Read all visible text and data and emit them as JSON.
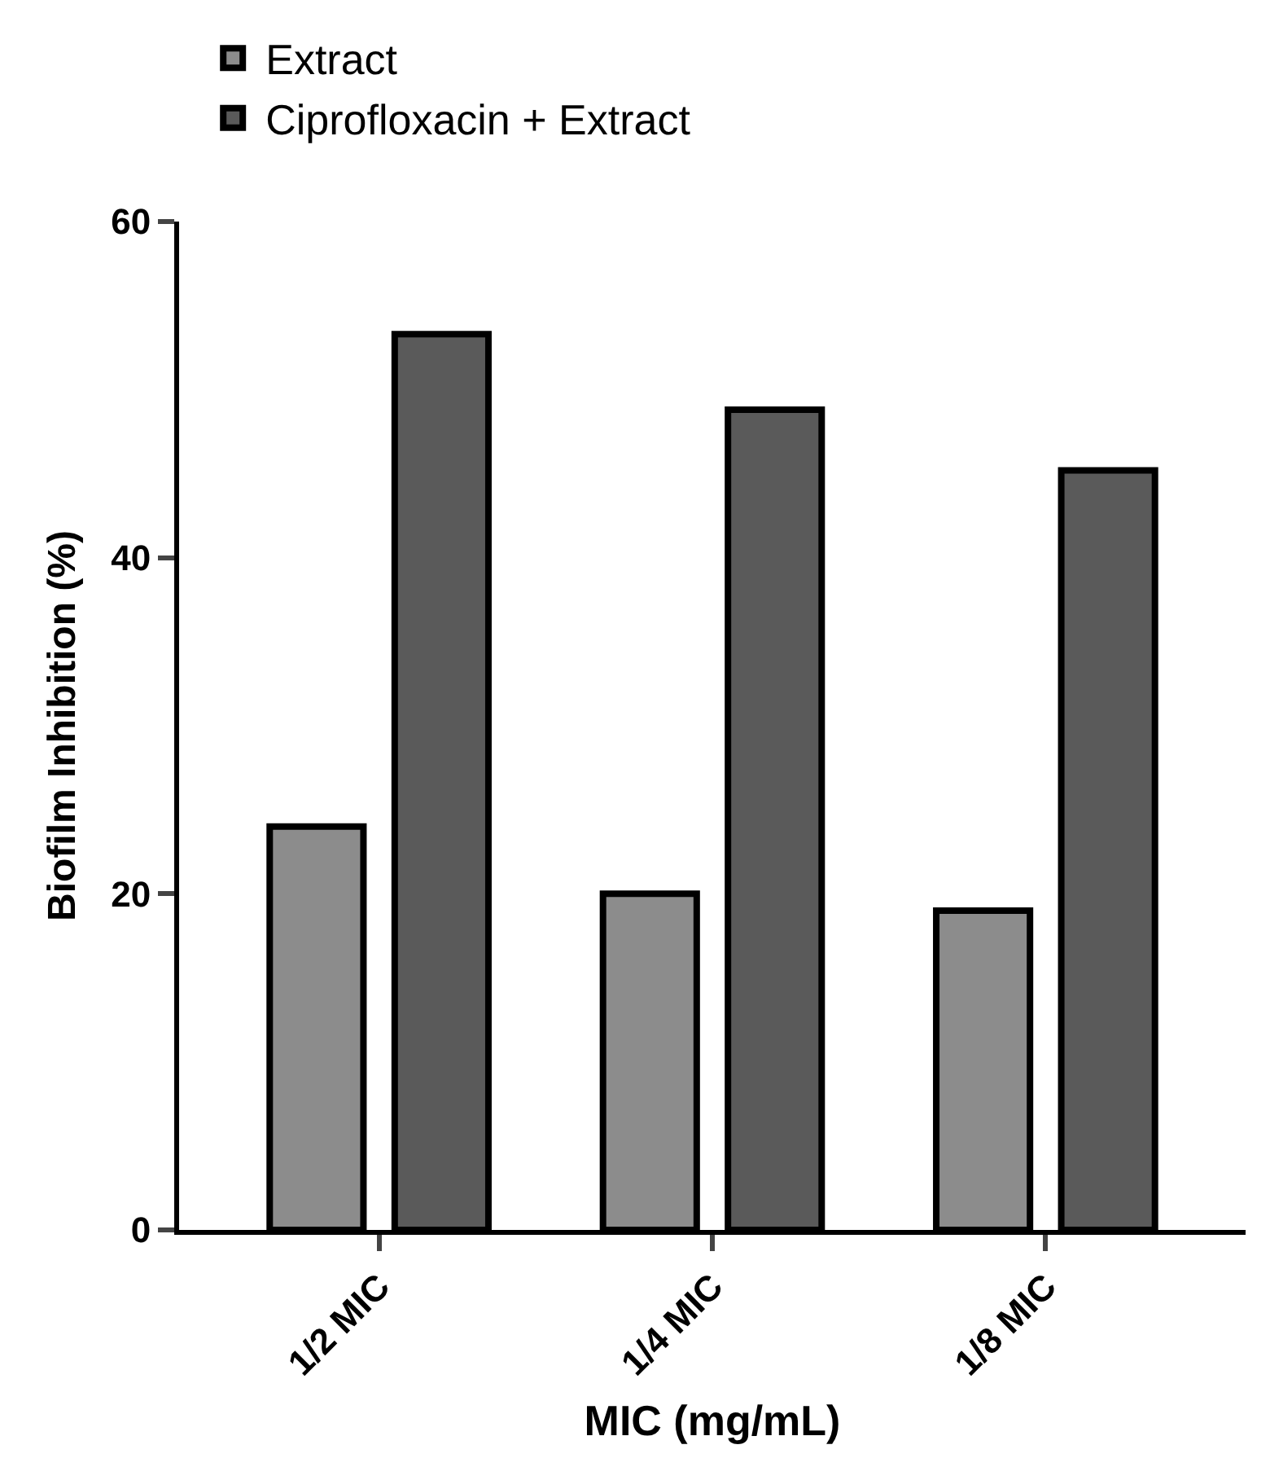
{
  "chart_data": {
    "type": "bar",
    "xlabel": "MIC (mg/mL)",
    "ylabel": "Biofilm Inhibition (%)",
    "categories": [
      "1/2 MIC",
      "1/4 MIC",
      "1/8 MIC"
    ],
    "series": [
      {
        "name": "Extract",
        "color": "#8c8c8c",
        "values": [
          24,
          20,
          19
        ]
      },
      {
        "name": "Ciprofloxacin + Extract",
        "color": "#5a5a5a",
        "values": [
          53.3,
          48.8,
          45.2
        ]
      }
    ],
    "ylim": [
      0,
      60
    ],
    "yticks": [
      0,
      20,
      40,
      60
    ],
    "legend": "top left"
  }
}
